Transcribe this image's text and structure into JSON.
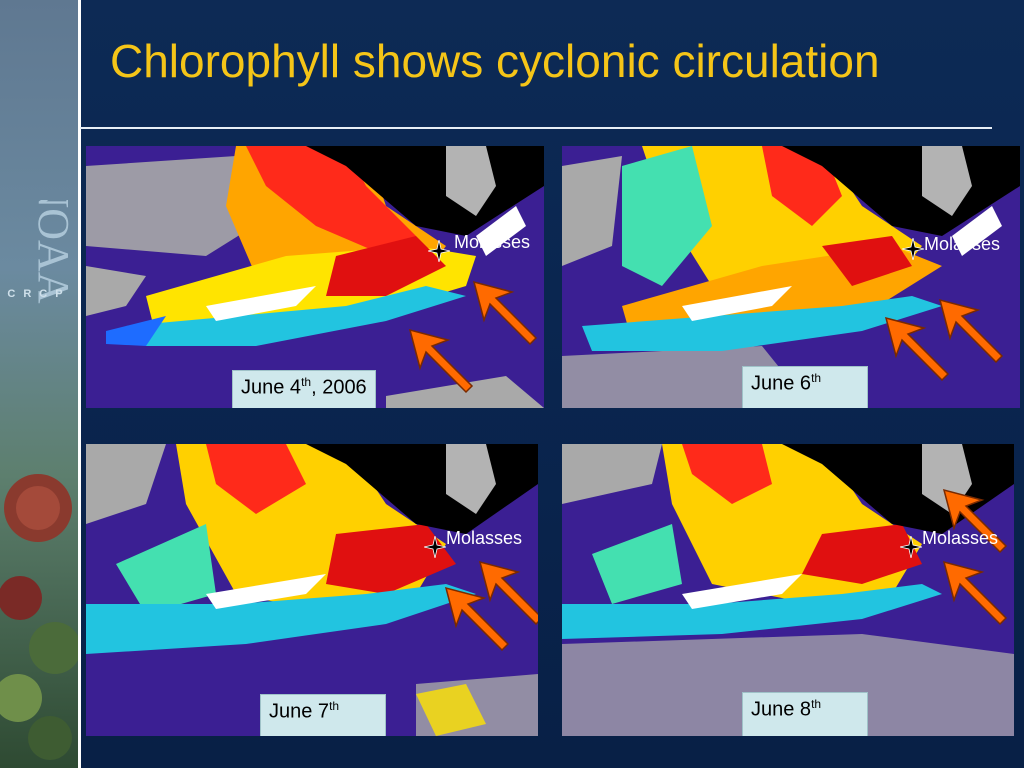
{
  "slide": {
    "title": "Chlorophyll shows cyclonic circulation",
    "sidebar": {
      "logo_text": "CRCP",
      "logo_mark": "NOAA"
    }
  },
  "panels": [
    {
      "date_main": "June 4",
      "date_sup": "th",
      "date_suffix": ", 2006",
      "site_label": "Molasses"
    },
    {
      "date_main": "June 6",
      "date_sup": "th",
      "date_suffix": "",
      "site_label": "Molasses"
    },
    {
      "date_main": "June 7",
      "date_sup": "th",
      "date_suffix": "",
      "site_label": "Molasses"
    },
    {
      "date_main": "June 8",
      "date_sup": "th",
      "date_suffix": "",
      "site_label": "Molasses"
    }
  ],
  "colors": {
    "title": "#f5c518",
    "arrow": "#ff6a00",
    "water": "#3b1f93",
    "land": "#000000",
    "cloud": "#a9a9a9"
  }
}
